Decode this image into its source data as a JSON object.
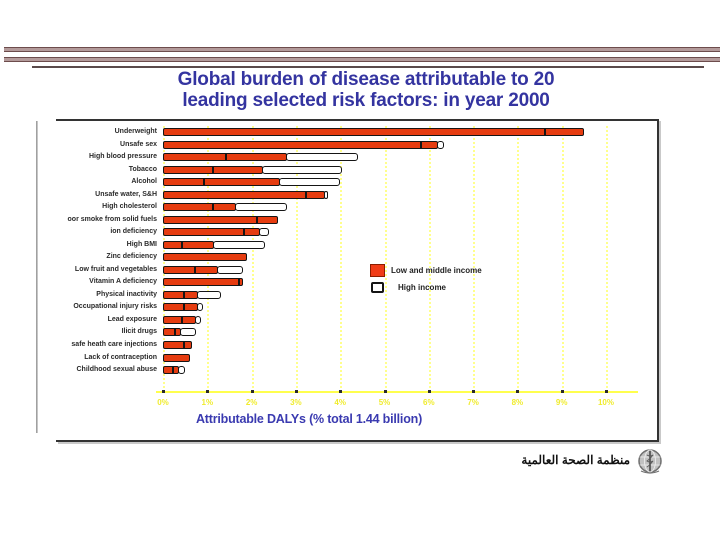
{
  "slide": {
    "title_line1": "Global burden of disease attributable to 20",
    "title_line2": "leading selected risk factors: in year 2000",
    "footer_arabic": "منظمة الصحة العالمية"
  },
  "colors": {
    "bar_low_middle": "#e63c10",
    "bar_high": "#ffffff",
    "grid_yellow": "#ffff8c",
    "axis_label_yellow": "#f0ec2e",
    "title_blue": "#3434a0",
    "axis_title_blue": "#3a3ab0"
  },
  "chart_data": {
    "type": "bar",
    "orientation": "horizontal",
    "stacked": true,
    "title": "Global burden of disease attributable to 20 leading selected risk factors: in year 2000",
    "xlabel": "Attributable DALYs (% total 1.44 billion)",
    "xlim": [
      0,
      10
    ],
    "x_ticks": [
      "0%",
      "1%",
      "2%",
      "3%",
      "4%",
      "5%",
      "6%",
      "7%",
      "8%",
      "9%",
      "10%"
    ],
    "grid": "vertical-dotted",
    "legend_position": "middle-right",
    "categories": [
      "Underweight",
      "Unsafe sex",
      "High blood pressure",
      "Tobacco",
      "Alcohol",
      "Unsafe water, S&H",
      "High cholesterol",
      "oor smoke from solid fuels",
      "ion deficiency",
      "High BMI",
      "Zinc deficiency",
      "Low fruit and vegetables",
      "Vitamin A deficiency",
      "Physical inactivity",
      "Occupational injury risks",
      "Lead exposure",
      "Ilicit drugs",
      "safe heath care injections",
      "Lack of contraception",
      "Childhood sexual abuse"
    ],
    "legend": [
      {
        "label": "Low and middle income",
        "color": "#e63c10"
      },
      {
        "label": "High income",
        "color": "#ffffff"
      }
    ],
    "series": [
      {
        "name": "Low and middle income",
        "values": [
          9.5,
          6.2,
          2.8,
          2.25,
          2.65,
          3.65,
          1.65,
          2.6,
          2.2,
          1.15,
          1.9,
          1.25,
          1.8,
          0.8,
          0.8,
          0.75,
          0.4,
          0.65,
          0.6,
          0.35
        ]
      },
      {
        "name": "High income",
        "values": [
          0,
          0.15,
          1.6,
          1.8,
          1.35,
          0.05,
          1.15,
          0,
          0.2,
          1.15,
          0,
          0.55,
          0,
          0.5,
          0.1,
          0.1,
          0.35,
          0,
          0,
          0.15
        ]
      }
    ],
    "segment_dividers": [
      8.6,
      5.8,
      1.4,
      1.1,
      0.9,
      3.2,
      1.1,
      2.1,
      1.8,
      0.4,
      null,
      0.7,
      1.7,
      0.45,
      0.45,
      0.4,
      0.25,
      0.45,
      null,
      0.2
    ]
  }
}
